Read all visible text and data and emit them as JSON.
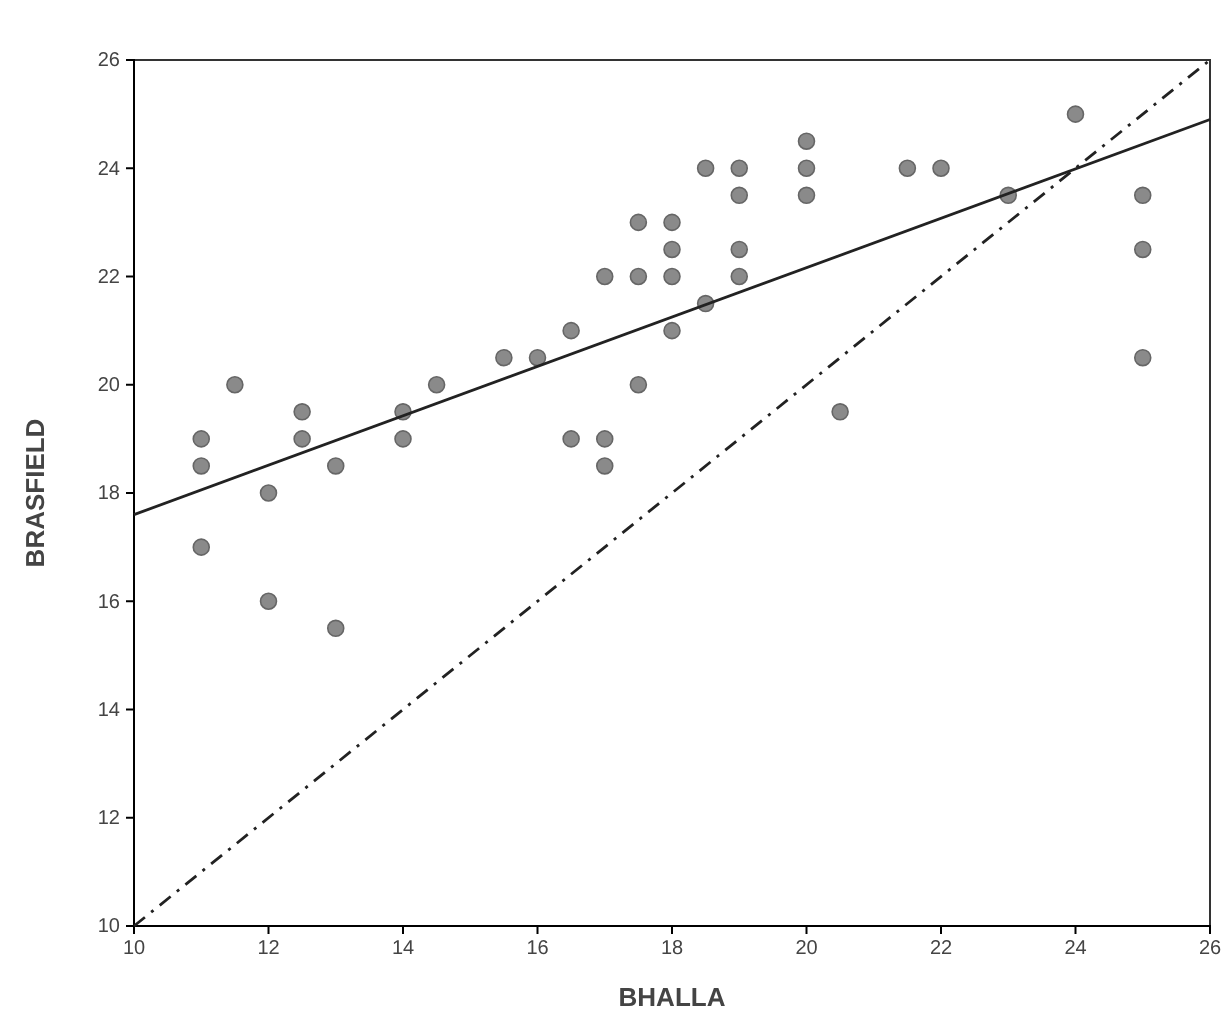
{
  "chart_data": {
    "type": "scatter",
    "xlabel": "BHALLA",
    "ylabel": "BRASFIELD",
    "xlim": [
      10,
      26
    ],
    "ylim": [
      10,
      26
    ],
    "xticks": [
      10,
      12,
      14,
      16,
      18,
      20,
      22,
      24,
      26
    ],
    "yticks": [
      10,
      12,
      14,
      16,
      18,
      20,
      22,
      24,
      26
    ],
    "grid": false,
    "series": [
      {
        "color": "#8a8a8a",
        "marker": "circle",
        "x": [
          11,
          11,
          11,
          11.5,
          12,
          12,
          12.5,
          12.5,
          13,
          13,
          14,
          14,
          14.5,
          15.5,
          16,
          16.5,
          16.5,
          17,
          17,
          17,
          17.5,
          17.5,
          17.5,
          18,
          18,
          18,
          18,
          18.5,
          18.5,
          19,
          19,
          19,
          19,
          20,
          20,
          20,
          20.5,
          21.5,
          22,
          23,
          24,
          25,
          25,
          25
        ],
        "values": [
          19,
          18.5,
          17,
          20,
          18,
          16,
          19.5,
          19,
          18.5,
          15.5,
          19.5,
          19,
          20,
          20.5,
          20.5,
          21,
          19,
          22,
          19,
          18.5,
          23,
          22,
          20,
          23,
          22.5,
          22,
          21,
          24,
          21.5,
          24,
          23.5,
          22.5,
          22,
          24.5,
          24,
          23.5,
          19.5,
          24,
          24,
          23.5,
          25,
          23.5,
          22.5,
          20.5
        ]
      },
      {
        "type": "line",
        "marker": "none",
        "color": "#222222",
        "line_style": "solid",
        "x": [
          10,
          26
        ],
        "values": [
          17.6,
          24.9
        ]
      },
      {
        "type": "line",
        "marker": "none",
        "color": "#222222",
        "line_style": "dashdot",
        "x": [
          10,
          26
        ],
        "values": [
          10,
          26
        ]
      }
    ]
  }
}
